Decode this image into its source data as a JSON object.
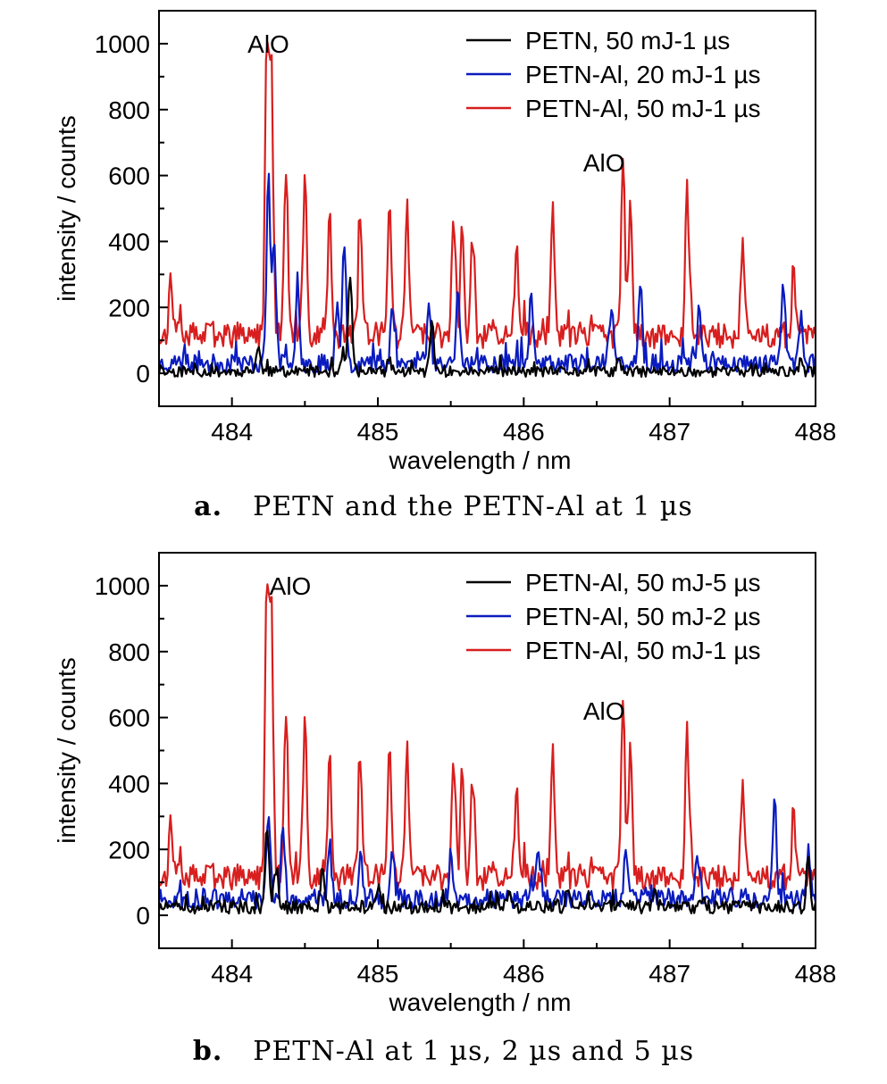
{
  "chart_data": [
    {
      "type": "line",
      "caption_letter": "a.",
      "caption_text": "PETN and the PETN-Al at 1 µs",
      "xlabel": "wavelength / nm",
      "ylabel": "intensity / counts",
      "xlim": [
        483.5,
        488.0
      ],
      "ylim": [
        -100,
        1100
      ],
      "xticks": [
        484,
        485,
        486,
        487,
        488
      ],
      "yticks": [
        0,
        200,
        400,
        600,
        800,
        1000
      ],
      "grid": false,
      "legend_position": "top-right",
      "annotations": [
        {
          "text": "AlO",
          "x": 484.25,
          "y": 1000
        },
        {
          "text": "AlO",
          "x": 486.55,
          "y": 640
        }
      ],
      "series": [
        {
          "name": "PETN, 50 mJ-1 µs",
          "color": "#000000",
          "baseline": 5,
          "noise": 16,
          "seed": 11,
          "peaks": [
            [
              484.18,
              80
            ],
            [
              484.81,
              300
            ],
            [
              484.76,
              60
            ],
            [
              485.37,
              150
            ],
            [
              485.08,
              40
            ],
            [
              486.65,
              30
            ],
            [
              487.9,
              30
            ]
          ]
        },
        {
          "name": "PETN-Al, 20 mJ-1 µs",
          "color": "#0a1bbf",
          "baseline": 30,
          "noise": 28,
          "seed": 23,
          "peaks": [
            [
              484.25,
              560
            ],
            [
              484.29,
              380
            ],
            [
              484.45,
              260
            ],
            [
              484.77,
              370
            ],
            [
              484.72,
              180
            ],
            [
              485.1,
              180
            ],
            [
              485.55,
              240
            ],
            [
              485.35,
              170
            ],
            [
              486.05,
              200
            ],
            [
              486.6,
              180
            ],
            [
              486.8,
              230
            ],
            [
              487.2,
              170
            ],
            [
              487.78,
              240
            ],
            [
              487.9,
              150
            ]
          ]
        },
        {
          "name": "PETN-Al, 50 mJ-1 µs",
          "color": "#d81e1e",
          "baseline": 115,
          "noise": 40,
          "seed": 37,
          "peaks": [
            [
              483.58,
              160
            ],
            [
              484.24,
              830
            ],
            [
              484.27,
              820
            ],
            [
              484.37,
              520
            ],
            [
              484.5,
              460
            ],
            [
              484.67,
              380
            ],
            [
              484.88,
              380
            ],
            [
              485.08,
              360
            ],
            [
              485.2,
              380
            ],
            [
              485.52,
              370
            ],
            [
              485.58,
              330
            ],
            [
              485.65,
              300
            ],
            [
              485.95,
              280
            ],
            [
              486.2,
              370
            ],
            [
              486.68,
              530
            ],
            [
              486.73,
              380
            ],
            [
              487.12,
              440
            ],
            [
              487.5,
              260
            ],
            [
              487.85,
              200
            ]
          ]
        }
      ]
    },
    {
      "type": "line",
      "caption_letter": "b.",
      "caption_text": "PETN-Al at 1 µs, 2 µs and 5 µs",
      "xlabel": "wavelength / nm",
      "ylabel": "intensity / counts",
      "xlim": [
        483.5,
        488.0
      ],
      "ylim": [
        -100,
        1100
      ],
      "xticks": [
        484,
        485,
        486,
        487,
        488
      ],
      "yticks": [
        0,
        200,
        400,
        600,
        800,
        1000
      ],
      "grid": false,
      "legend_position": "top-right",
      "annotations": [
        {
          "text": "AlO",
          "x": 484.4,
          "y": 1000
        },
        {
          "text": "AlO",
          "x": 486.55,
          "y": 620
        }
      ],
      "series": [
        {
          "name": "PETN-Al, 50 mJ-5 µs",
          "color": "#000000",
          "baseline": 25,
          "noise": 20,
          "seed": 51,
          "peaks": [
            [
              484.24,
              240
            ],
            [
              484.3,
              120
            ],
            [
              484.62,
              130
            ],
            [
              485.0,
              60
            ],
            [
              485.9,
              60
            ],
            [
              486.3,
              50
            ],
            [
              486.9,
              60
            ],
            [
              487.95,
              140
            ]
          ]
        },
        {
          "name": "PETN-Al, 50 mJ-2 µs",
          "color": "#0a1bbf",
          "baseline": 50,
          "noise": 30,
          "seed": 63,
          "peaks": [
            [
              484.25,
              230
            ],
            [
              484.35,
              220
            ],
            [
              484.67,
              160
            ],
            [
              484.88,
              140
            ],
            [
              485.1,
              150
            ],
            [
              485.5,
              130
            ],
            [
              486.1,
              170
            ],
            [
              486.7,
              130
            ],
            [
              487.2,
              120
            ],
            [
              487.72,
              300
            ],
            [
              487.95,
              140
            ]
          ]
        },
        {
          "name": "PETN-Al, 50 mJ-1 µs",
          "color": "#d81e1e",
          "baseline": 115,
          "noise": 40,
          "seed": 37,
          "peaks": [
            [
              483.58,
              160
            ],
            [
              484.24,
              830
            ],
            [
              484.27,
              820
            ],
            [
              484.37,
              520
            ],
            [
              484.5,
              460
            ],
            [
              484.67,
              380
            ],
            [
              484.88,
              380
            ],
            [
              485.08,
              360
            ],
            [
              485.2,
              380
            ],
            [
              485.52,
              370
            ],
            [
              485.58,
              330
            ],
            [
              485.65,
              300
            ],
            [
              485.95,
              280
            ],
            [
              486.2,
              370
            ],
            [
              486.68,
              530
            ],
            [
              486.73,
              380
            ],
            [
              487.12,
              440
            ],
            [
              487.5,
              260
            ],
            [
              487.85,
              200
            ]
          ]
        }
      ]
    }
  ]
}
